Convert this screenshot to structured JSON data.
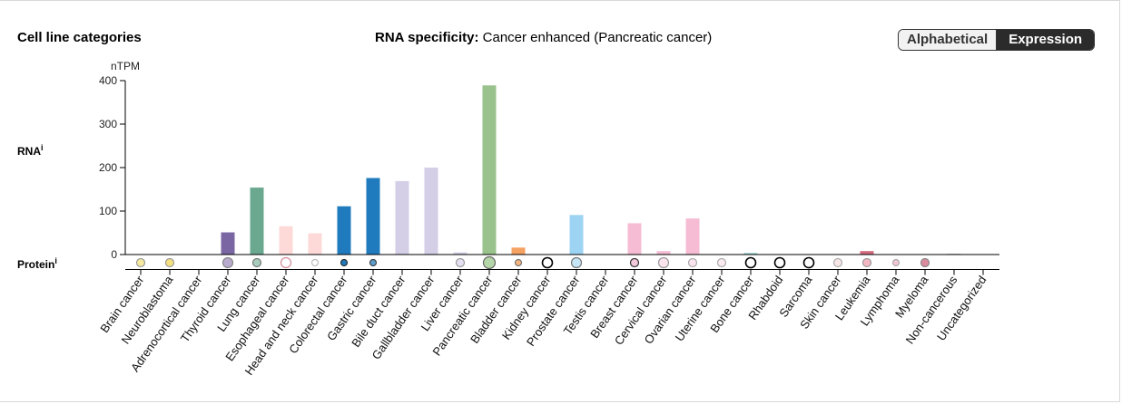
{
  "header": {
    "section_title": "Cell line categories",
    "spec_label": "RNA specificity:",
    "spec_value": "Cancer enhanced (Pancreatic cancer)"
  },
  "toggle": {
    "alphabetical": "Alphabetical",
    "expression": "Expression",
    "active": "Expression"
  },
  "rows": {
    "rna": "RNA",
    "protein": "Protein",
    "info_marker": "i"
  },
  "chart_data": {
    "type": "bar",
    "ylabel": "nTPM",
    "ylim": [
      0,
      400
    ],
    "yticks": [
      0,
      100,
      200,
      300,
      400
    ],
    "categories": [
      "Brain cancer",
      "Neuroblastoma",
      "Adrenocortical cancer",
      "Thyroid cancer",
      "Lung cancer",
      "Esophageal cancer",
      "Head and neck cancer",
      "Colorectal cancer",
      "Gastric cancer",
      "Bile duct cancer",
      "Gallbladder cancer",
      "Liver cancer",
      "Pancreatic cancer",
      "Bladder cancer",
      "Kidney cancer",
      "Prostate cancer",
      "Testis cancer",
      "Breast cancer",
      "Cervical cancer",
      "Ovarian cancer",
      "Uterine cancer",
      "Bone cancer",
      "Rhabdoid",
      "Sarcoma",
      "Skin cancer",
      "Leukemia",
      "Lymphoma",
      "Myeloma",
      "Non-cancerous",
      "Uncategorized"
    ],
    "values": [
      0,
      0,
      0,
      51,
      154,
      65,
      49,
      111,
      176,
      169,
      200,
      5,
      389,
      16,
      0,
      91,
      0,
      72,
      8,
      83,
      0,
      4,
      0,
      0,
      0,
      8,
      0,
      0,
      2,
      0
    ],
    "bar_colors": [
      "#f5e9a0",
      "#f5e9a0",
      "#cccccc",
      "#7a66a2",
      "#6aa890",
      "#fdd9d8",
      "#fdd9d8",
      "#1f7bbd",
      "#1f7bbd",
      "#d4cfe7",
      "#d4cfe7",
      "#d4cfe7",
      "#9ac28c",
      "#f4a162",
      "#cccccc",
      "#9dd3f3",
      "#cccccc",
      "#f5bcd4",
      "#f5bcd4",
      "#f5bcd4",
      "#f5bcd4",
      "#a6dbd6",
      "#cccccc",
      "#cccccc",
      "#cccccc",
      "#d36b7e",
      "#d8b0c0",
      "#d8b0c0",
      "#cccccc",
      "#cccccc"
    ],
    "protein": [
      {
        "fill": "#f5e9a0",
        "stroke": "#999999",
        "size": "small"
      },
      {
        "fill": "#f5e080",
        "stroke": "#999999",
        "size": "small"
      },
      null,
      {
        "fill": "#b8abce",
        "stroke": "#888888",
        "size": "medium"
      },
      {
        "fill": "#a9cdbd",
        "stroke": "#777777",
        "size": "small"
      },
      {
        "fill": "#ffffff",
        "stroke": "#d48c96",
        "size": "medium"
      },
      {
        "fill": "#ffffff",
        "stroke": "#bbbbbb",
        "size": "tiny"
      },
      {
        "fill": "#1f7bbd",
        "stroke": "#333333",
        "size": "tiny"
      },
      {
        "fill": "#5a9fd0",
        "stroke": "#444444",
        "size": "tiny"
      },
      null,
      null,
      {
        "fill": "#e6e1f2",
        "stroke": "#999999",
        "size": "small"
      },
      {
        "fill": "#b5d6a8",
        "stroke": "#666666",
        "size": "large"
      },
      {
        "fill": "#f6b47e",
        "stroke": "#777777",
        "size": "tiny"
      },
      {
        "fill": "#ffffff",
        "stroke": "#000000",
        "size": "medium"
      },
      {
        "fill": "#c6e6f8",
        "stroke": "#777777",
        "size": "medium"
      },
      null,
      {
        "fill": "#f5c9dc",
        "stroke": "#333333",
        "size": "small"
      },
      {
        "fill": "#fbe4ee",
        "stroke": "#999999",
        "size": "medium"
      },
      {
        "fill": "#fbe4ee",
        "stroke": "#aaaaaa",
        "size": "small"
      },
      {
        "fill": "#fbeaf0",
        "stroke": "#aaaaaa",
        "size": "small"
      },
      {
        "fill": "#ffffff",
        "stroke": "#000000",
        "size": "medium"
      },
      {
        "fill": "#ffffff",
        "stroke": "#000000",
        "size": "medium"
      },
      {
        "fill": "#ffffff",
        "stroke": "#000000",
        "size": "medium"
      },
      {
        "fill": "#f8e6e6",
        "stroke": "#aaaaaa",
        "size": "small"
      },
      {
        "fill": "#f3b8c3",
        "stroke": "#999999",
        "size": "small"
      },
      {
        "fill": "#f1c5d2",
        "stroke": "#aaaaaa",
        "size": "tiny"
      },
      {
        "fill": "#dc8a9e",
        "stroke": "#888888",
        "size": "small"
      },
      null,
      null
    ]
  }
}
